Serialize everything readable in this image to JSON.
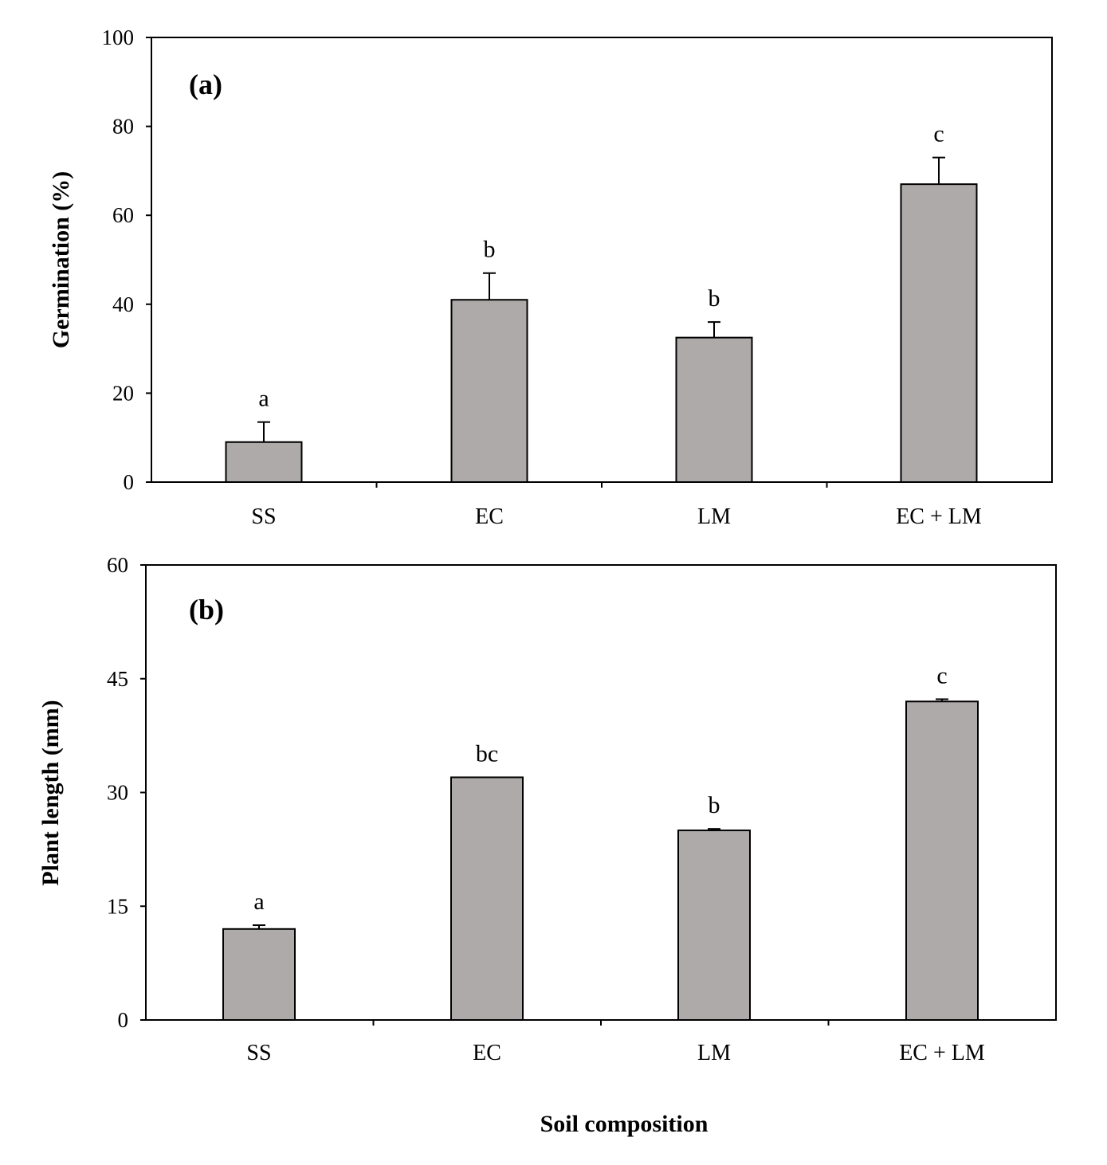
{
  "chart_data": [
    {
      "type": "bar",
      "panel_label": "(a)",
      "categories": [
        "SS",
        "EC",
        "LM",
        "EC + LM"
      ],
      "values": [
        9,
        41,
        32.5,
        67
      ],
      "errors": [
        4.5,
        6,
        3.5,
        6
      ],
      "significance": [
        "a",
        "b",
        "b",
        "c"
      ],
      "ylabel": "Germination (%)",
      "ylim": [
        0,
        100
      ],
      "yticks": [
        0,
        20,
        40,
        60,
        80,
        100
      ],
      "bar_color": "#aeaaaa"
    },
    {
      "type": "bar",
      "panel_label": "(b)",
      "categories": [
        "SS",
        "EC",
        "LM",
        "EC + LM"
      ],
      "values": [
        12,
        32,
        25,
        42
      ],
      "errors": [
        0.5,
        0,
        0.2,
        0.3
      ],
      "significance": [
        "a",
        "bc",
        "b",
        "c"
      ],
      "ylabel": "Plant length (mm)",
      "ylim": [
        0,
        60
      ],
      "yticks": [
        0,
        15,
        30,
        45,
        60
      ],
      "bar_color": "#aeaaaa"
    }
  ],
  "xlabel": "Soil composition"
}
